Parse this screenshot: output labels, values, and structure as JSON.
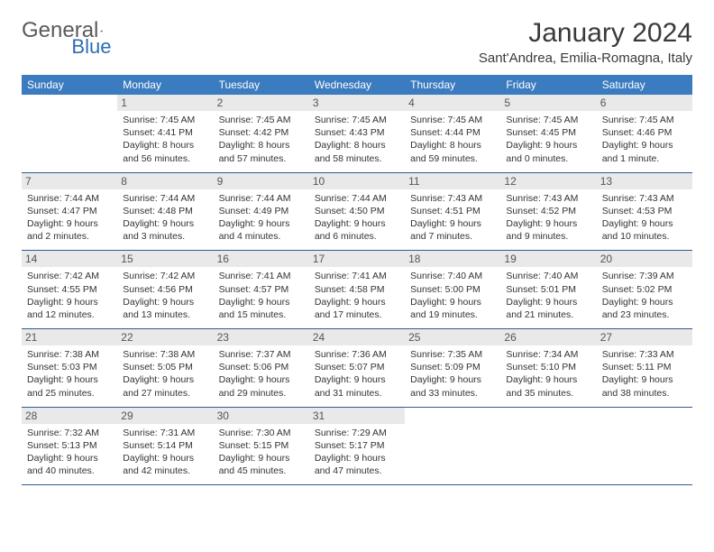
{
  "brand": {
    "part1": "General",
    "part2": "Blue"
  },
  "title": "January 2024",
  "location": "Sant'Andrea, Emilia-Romagna, Italy",
  "colors": {
    "header_bg": "#3b7bbf",
    "header_fg": "#ffffff",
    "daynum_bg": "#e9e9e9",
    "border": "#2d5d8f",
    "brand_gray": "#5a5a5a",
    "brand_blue": "#2d6cb0"
  },
  "weekdays": [
    "Sunday",
    "Monday",
    "Tuesday",
    "Wednesday",
    "Thursday",
    "Friday",
    "Saturday"
  ],
  "weeks": [
    [
      null,
      {
        "n": "1",
        "sr": "Sunrise: 7:45 AM",
        "ss": "Sunset: 4:41 PM",
        "d1": "Daylight: 8 hours",
        "d2": "and 56 minutes."
      },
      {
        "n": "2",
        "sr": "Sunrise: 7:45 AM",
        "ss": "Sunset: 4:42 PM",
        "d1": "Daylight: 8 hours",
        "d2": "and 57 minutes."
      },
      {
        "n": "3",
        "sr": "Sunrise: 7:45 AM",
        "ss": "Sunset: 4:43 PM",
        "d1": "Daylight: 8 hours",
        "d2": "and 58 minutes."
      },
      {
        "n": "4",
        "sr": "Sunrise: 7:45 AM",
        "ss": "Sunset: 4:44 PM",
        "d1": "Daylight: 8 hours",
        "d2": "and 59 minutes."
      },
      {
        "n": "5",
        "sr": "Sunrise: 7:45 AM",
        "ss": "Sunset: 4:45 PM",
        "d1": "Daylight: 9 hours",
        "d2": "and 0 minutes."
      },
      {
        "n": "6",
        "sr": "Sunrise: 7:45 AM",
        "ss": "Sunset: 4:46 PM",
        "d1": "Daylight: 9 hours",
        "d2": "and 1 minute."
      }
    ],
    [
      {
        "n": "7",
        "sr": "Sunrise: 7:44 AM",
        "ss": "Sunset: 4:47 PM",
        "d1": "Daylight: 9 hours",
        "d2": "and 2 minutes."
      },
      {
        "n": "8",
        "sr": "Sunrise: 7:44 AM",
        "ss": "Sunset: 4:48 PM",
        "d1": "Daylight: 9 hours",
        "d2": "and 3 minutes."
      },
      {
        "n": "9",
        "sr": "Sunrise: 7:44 AM",
        "ss": "Sunset: 4:49 PM",
        "d1": "Daylight: 9 hours",
        "d2": "and 4 minutes."
      },
      {
        "n": "10",
        "sr": "Sunrise: 7:44 AM",
        "ss": "Sunset: 4:50 PM",
        "d1": "Daylight: 9 hours",
        "d2": "and 6 minutes."
      },
      {
        "n": "11",
        "sr": "Sunrise: 7:43 AM",
        "ss": "Sunset: 4:51 PM",
        "d1": "Daylight: 9 hours",
        "d2": "and 7 minutes."
      },
      {
        "n": "12",
        "sr": "Sunrise: 7:43 AM",
        "ss": "Sunset: 4:52 PM",
        "d1": "Daylight: 9 hours",
        "d2": "and 9 minutes."
      },
      {
        "n": "13",
        "sr": "Sunrise: 7:43 AM",
        "ss": "Sunset: 4:53 PM",
        "d1": "Daylight: 9 hours",
        "d2": "and 10 minutes."
      }
    ],
    [
      {
        "n": "14",
        "sr": "Sunrise: 7:42 AM",
        "ss": "Sunset: 4:55 PM",
        "d1": "Daylight: 9 hours",
        "d2": "and 12 minutes."
      },
      {
        "n": "15",
        "sr": "Sunrise: 7:42 AM",
        "ss": "Sunset: 4:56 PM",
        "d1": "Daylight: 9 hours",
        "d2": "and 13 minutes."
      },
      {
        "n": "16",
        "sr": "Sunrise: 7:41 AM",
        "ss": "Sunset: 4:57 PM",
        "d1": "Daylight: 9 hours",
        "d2": "and 15 minutes."
      },
      {
        "n": "17",
        "sr": "Sunrise: 7:41 AM",
        "ss": "Sunset: 4:58 PM",
        "d1": "Daylight: 9 hours",
        "d2": "and 17 minutes."
      },
      {
        "n": "18",
        "sr": "Sunrise: 7:40 AM",
        "ss": "Sunset: 5:00 PM",
        "d1": "Daylight: 9 hours",
        "d2": "and 19 minutes."
      },
      {
        "n": "19",
        "sr": "Sunrise: 7:40 AM",
        "ss": "Sunset: 5:01 PM",
        "d1": "Daylight: 9 hours",
        "d2": "and 21 minutes."
      },
      {
        "n": "20",
        "sr": "Sunrise: 7:39 AM",
        "ss": "Sunset: 5:02 PM",
        "d1": "Daylight: 9 hours",
        "d2": "and 23 minutes."
      }
    ],
    [
      {
        "n": "21",
        "sr": "Sunrise: 7:38 AM",
        "ss": "Sunset: 5:03 PM",
        "d1": "Daylight: 9 hours",
        "d2": "and 25 minutes."
      },
      {
        "n": "22",
        "sr": "Sunrise: 7:38 AM",
        "ss": "Sunset: 5:05 PM",
        "d1": "Daylight: 9 hours",
        "d2": "and 27 minutes."
      },
      {
        "n": "23",
        "sr": "Sunrise: 7:37 AM",
        "ss": "Sunset: 5:06 PM",
        "d1": "Daylight: 9 hours",
        "d2": "and 29 minutes."
      },
      {
        "n": "24",
        "sr": "Sunrise: 7:36 AM",
        "ss": "Sunset: 5:07 PM",
        "d1": "Daylight: 9 hours",
        "d2": "and 31 minutes."
      },
      {
        "n": "25",
        "sr": "Sunrise: 7:35 AM",
        "ss": "Sunset: 5:09 PM",
        "d1": "Daylight: 9 hours",
        "d2": "and 33 minutes."
      },
      {
        "n": "26",
        "sr": "Sunrise: 7:34 AM",
        "ss": "Sunset: 5:10 PM",
        "d1": "Daylight: 9 hours",
        "d2": "and 35 minutes."
      },
      {
        "n": "27",
        "sr": "Sunrise: 7:33 AM",
        "ss": "Sunset: 5:11 PM",
        "d1": "Daylight: 9 hours",
        "d2": "and 38 minutes."
      }
    ],
    [
      {
        "n": "28",
        "sr": "Sunrise: 7:32 AM",
        "ss": "Sunset: 5:13 PM",
        "d1": "Daylight: 9 hours",
        "d2": "and 40 minutes."
      },
      {
        "n": "29",
        "sr": "Sunrise: 7:31 AM",
        "ss": "Sunset: 5:14 PM",
        "d1": "Daylight: 9 hours",
        "d2": "and 42 minutes."
      },
      {
        "n": "30",
        "sr": "Sunrise: 7:30 AM",
        "ss": "Sunset: 5:15 PM",
        "d1": "Daylight: 9 hours",
        "d2": "and 45 minutes."
      },
      {
        "n": "31",
        "sr": "Sunrise: 7:29 AM",
        "ss": "Sunset: 5:17 PM",
        "d1": "Daylight: 9 hours",
        "d2": "and 47 minutes."
      },
      null,
      null,
      null
    ]
  ]
}
